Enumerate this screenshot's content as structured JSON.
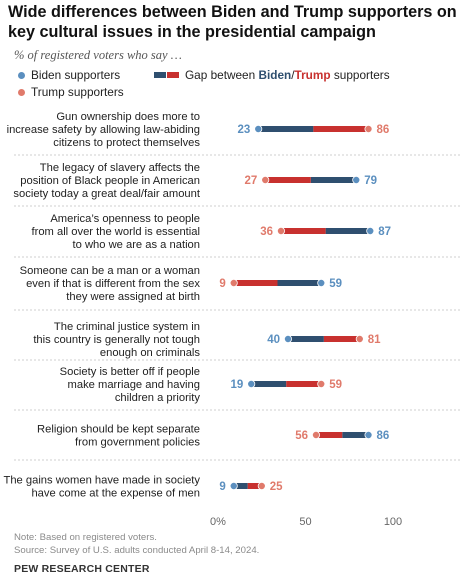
{
  "title": "Wide differences between Biden and Trump supporters on key cultural issues in the presidential campaign",
  "subtitle": "% of registered voters who say …",
  "legend": {
    "biden": "Biden supporters",
    "trump": "Trump supporters",
    "gap_prefix": "Gap between ",
    "gap_biden": "Biden",
    "gap_slash": "/",
    "gap_trump": "Trump",
    "gap_suffix": " supporters"
  },
  "colors": {
    "biden": "#5b8fbf",
    "trump": "#e07a6b",
    "gap_biden": "#2f4f6f",
    "gap_trump": "#c8312f"
  },
  "note": "Note: Based on registered voters.",
  "source": "Source: Survey of U.S. adults conducted April 8-14, 2024.",
  "brand": "PEW RESEARCH CENTER",
  "chart_data": {
    "type": "dot-gap",
    "xlim": [
      0,
      100
    ],
    "ticks": [
      "0%",
      "50",
      "100"
    ],
    "tick_values": [
      0,
      50,
      100
    ],
    "series": [
      {
        "name": "Biden supporters"
      },
      {
        "name": "Trump supporters"
      }
    ],
    "rows": [
      {
        "label": [
          "Gun ownership does more to",
          "increase safety by allowing law-abiding",
          "citizens to protect themselves"
        ],
        "biden": 23,
        "trump": 86
      },
      {
        "label": [
          "The legacy of slavery affects the",
          "position of Black people in American",
          "society today a great deal/fair amount"
        ],
        "biden": 79,
        "trump": 27
      },
      {
        "label": [
          "America’s openness to people",
          "from all over the world is essential",
          "to who we are as a nation"
        ],
        "biden": 87,
        "trump": 36
      },
      {
        "label": [
          "Someone can be a man or a woman",
          "even if that is different from the sex",
          "they were assigned at birth"
        ],
        "biden": 59,
        "trump": 9
      },
      {
        "label": [
          "The criminal justice system in",
          "this country is generally not tough",
          "enough on criminals"
        ],
        "biden": 40,
        "trump": 81
      },
      {
        "label": [
          "Society is better off if people",
          "make marriage and having",
          "children a priority"
        ],
        "biden": 19,
        "trump": 59
      },
      {
        "label": [
          "Religion should be kept separate",
          "from government policies"
        ],
        "biden": 86,
        "trump": 56
      },
      {
        "label": [
          "The gains women have made in society",
          "have come at the expense of men"
        ],
        "biden": 9,
        "trump": 25
      }
    ]
  }
}
